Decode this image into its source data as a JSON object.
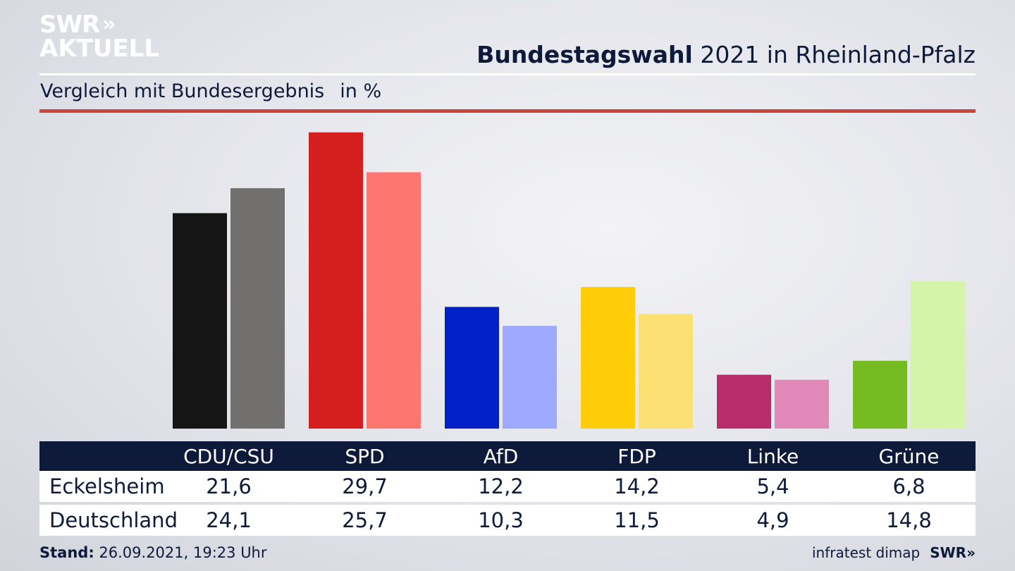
{
  "logo": {
    "line1": "SWR",
    "arrows": "»",
    "line2": "AKTUELL"
  },
  "header": {
    "title_bold": "Bundestagswahl",
    "title_rest": "2021 in Rheinland-Pfalz"
  },
  "subtitle": {
    "text": "Vergleich mit Bundesergebnis",
    "unit": "in %"
  },
  "chart_data": {
    "type": "bar",
    "title": "Bundestagswahl 2021 in Rheinland-Pfalz",
    "subtitle": "Vergleich mit Bundesergebnis in %",
    "categories": [
      "CDU/CSU",
      "SPD",
      "AfD",
      "FDP",
      "Linke",
      "Grüne"
    ],
    "series": [
      {
        "name": "Eckelsheim",
        "label": "Eckelsheim",
        "values": [
          21.6,
          29.7,
          12.2,
          14.2,
          5.4,
          6.8
        ],
        "values_text": [
          "21,6",
          "29,7",
          "12,2",
          "14,2",
          "5,4",
          "6,8"
        ],
        "colors": [
          "#151515",
          "#d51e1e",
          "#0020c8",
          "#ffcc0a",
          "#b82c6c",
          "#76bb22"
        ]
      },
      {
        "name": "Deutschland",
        "label": "Deutschland",
        "values": [
          24.1,
          25.7,
          10.3,
          11.5,
          4.9,
          14.8
        ],
        "values_text": [
          "24,1",
          "25,7",
          "10,3",
          "11,5",
          "4,9",
          "14,8"
        ],
        "colors": [
          "#72706e",
          "#ff7570",
          "#9eaaff",
          "#fde074",
          "#e088b8",
          "#d4f5a8"
        ]
      }
    ],
    "ylim": [
      0,
      30
    ],
    "legend": "table-below"
  },
  "footer": {
    "stand_label": "Stand:",
    "stand_value": "26.09.2021, 19:23 Uhr",
    "source": "infratest dimap",
    "brand": "SWR»"
  }
}
